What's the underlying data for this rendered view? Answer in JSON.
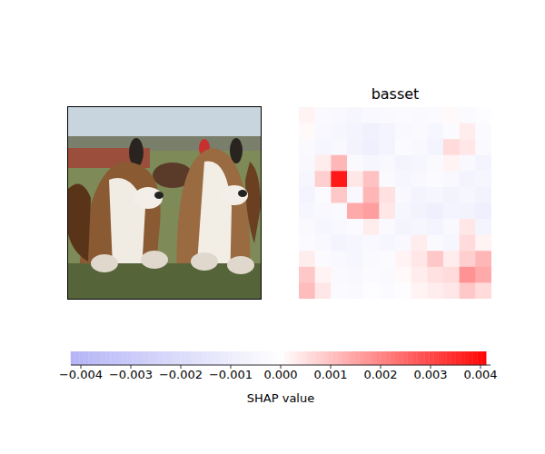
{
  "chart_data": {
    "type": "heatmap",
    "title": "basset",
    "tick_labels": false,
    "cells": [
      [
        0.0002,
        -0.0003,
        -0.0004,
        -0.0005,
        -0.0004,
        -0.0003,
        -0.0002,
        -0.0003,
        -0.0002,
        0.0001,
        -0.0002,
        -0.0001
      ],
      [
        0.0001,
        -0.0004,
        -0.0005,
        -0.0006,
        -0.0008,
        -0.0006,
        -0.0004,
        -0.0003,
        -0.0005,
        -0.0002,
        0.0003,
        -0.0002
      ],
      [
        -0.0003,
        -0.0005,
        -0.0004,
        -0.0007,
        -0.0009,
        -0.0006,
        -0.0002,
        -0.0004,
        -0.0006,
        0.0006,
        0.0004,
        -0.0003
      ],
      [
        -0.0004,
        0.0003,
        0.0012,
        -0.0003,
        -0.0005,
        -0.0004,
        -0.0006,
        -0.0005,
        -0.0003,
        0.0002,
        -0.0004,
        -0.0006
      ],
      [
        -0.0005,
        0.0008,
        0.0038,
        0.0004,
        0.001,
        -0.0003,
        -0.0005,
        -0.0004,
        -0.0002,
        -0.0004,
        -0.0006,
        -0.0005
      ],
      [
        -0.0006,
        -0.0002,
        0.0009,
        -0.0004,
        0.0012,
        0.0005,
        -0.0004,
        -0.0006,
        -0.0005,
        -0.0007,
        -0.0005,
        -0.0007
      ],
      [
        -0.0005,
        -0.0004,
        -0.0003,
        0.0014,
        0.0016,
        0.0004,
        -0.0005,
        -0.0007,
        -0.0009,
        -0.0006,
        -0.0007,
        -0.0009
      ],
      [
        -0.0003,
        -0.0005,
        -0.0004,
        -0.0002,
        0.0003,
        -0.0003,
        -0.0006,
        -0.0005,
        -0.0006,
        -0.0004,
        0.0004,
        -0.0006
      ],
      [
        -0.0002,
        -0.0004,
        -0.0006,
        -0.0005,
        -0.0004,
        -0.0005,
        -0.0004,
        0.0003,
        -0.0003,
        -0.0005,
        0.0006,
        0.0002
      ],
      [
        0.0003,
        -0.0002,
        -0.0004,
        -0.0005,
        -0.0003,
        -0.0002,
        0.0002,
        0.0004,
        0.0009,
        0.0003,
        0.0008,
        0.0012
      ],
      [
        0.0009,
        0.0002,
        -0.0003,
        -0.0004,
        -0.0002,
        -0.0003,
        0.0001,
        0.0003,
        0.0005,
        0.0006,
        0.0018,
        0.0014
      ],
      [
        0.0011,
        0.0004,
        -0.0002,
        -0.0003,
        -0.0001,
        -0.0002,
        -0.0001,
        0.0002,
        0.0003,
        0.0004,
        0.0009,
        0.0006
      ]
    ],
    "colorbar": {
      "label": "SHAP value",
      "range": [
        -0.0042,
        0.0042
      ],
      "ticks": [
        {
          "value": -0.004,
          "label": "−0.004"
        },
        {
          "value": -0.003,
          "label": "−0.003"
        },
        {
          "value": -0.002,
          "label": "−0.002"
        },
        {
          "value": -0.001,
          "label": "−0.001"
        },
        {
          "value": 0,
          "label": "0.000"
        },
        {
          "value": 0.001,
          "label": "0.001"
        },
        {
          "value": 0.002,
          "label": "0.002"
        },
        {
          "value": 0.003,
          "label": "0.003"
        },
        {
          "value": 0.004,
          "label": "0.004"
        }
      ]
    }
  }
}
